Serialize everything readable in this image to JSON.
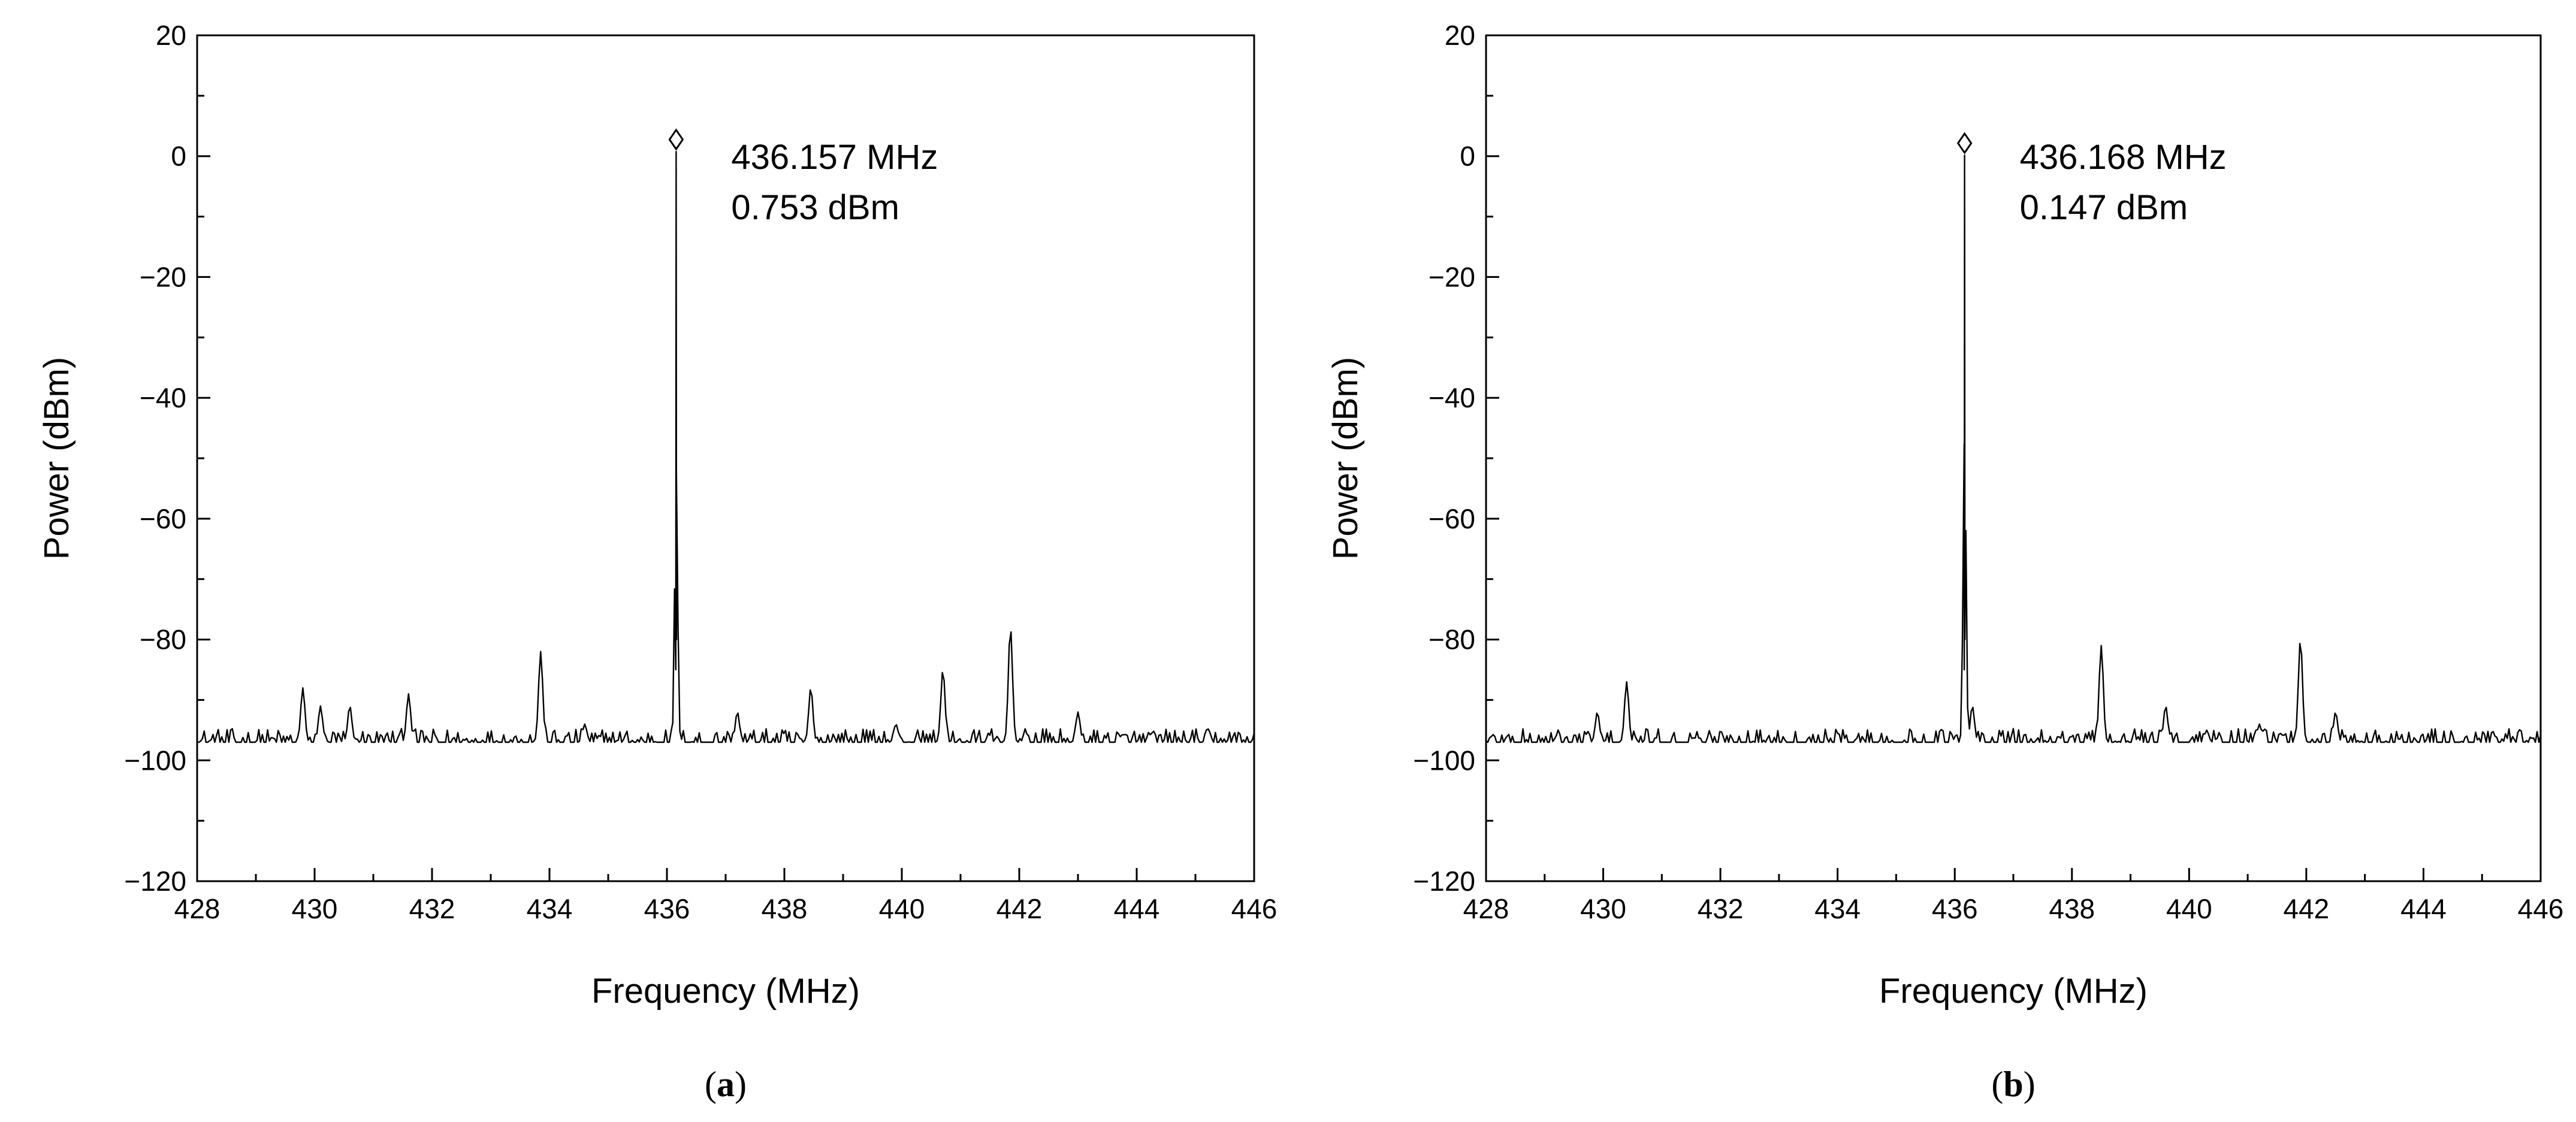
{
  "chart_data": [
    {
      "type": "line",
      "panel_label": "a",
      "xlabel": "Frequency (MHz)",
      "ylabel": "Power (dBm)",
      "xlim": [
        428,
        446
      ],
      "ylim": [
        -120,
        20
      ],
      "xticks": [
        428,
        430,
        432,
        434,
        436,
        438,
        440,
        442,
        444,
        446
      ],
      "yticks": [
        20,
        0,
        -20,
        -40,
        -60,
        -80,
        -100,
        -120
      ],
      "grid": false,
      "noise_floor": -97,
      "peak": {
        "x": 436.157,
        "y": 0.753,
        "label_freq": "436.157 MHz",
        "label_power": "0.753 dBm"
      },
      "spurs": [
        {
          "x": 429.8,
          "y": -88
        },
        {
          "x": 430.1,
          "y": -91
        },
        {
          "x": 430.6,
          "y": -91
        },
        {
          "x": 431.6,
          "y": -89
        },
        {
          "x": 433.85,
          "y": -82
        },
        {
          "x": 434.6,
          "y": -94
        },
        {
          "x": 436.157,
          "y": -51
        },
        {
          "x": 437.2,
          "y": -92
        },
        {
          "x": 438.45,
          "y": -88
        },
        {
          "x": 439.9,
          "y": -94
        },
        {
          "x": 440.7,
          "y": -85
        },
        {
          "x": 441.85,
          "y": -78
        },
        {
          "x": 443.0,
          "y": -92
        }
      ]
    },
    {
      "type": "line",
      "panel_label": "b",
      "xlabel": "Frequency (MHz)",
      "ylabel": "Power (dBm)",
      "xlim": [
        428,
        446
      ],
      "ylim": [
        -120,
        20
      ],
      "xticks": [
        428,
        430,
        432,
        434,
        436,
        438,
        440,
        442,
        444,
        446
      ],
      "yticks": [
        20,
        0,
        -20,
        -40,
        -60,
        -80,
        -100,
        -120
      ],
      "grid": false,
      "noise_floor": -97,
      "peak": {
        "x": 436.168,
        "y": 0.147,
        "label_freq": "436.168 MHz",
        "label_power": "0.147 dBm"
      },
      "spurs": [
        {
          "x": 429.9,
          "y": -92
        },
        {
          "x": 430.4,
          "y": -87
        },
        {
          "x": 431.6,
          "y": -96
        },
        {
          "x": 436.168,
          "y": -45
        },
        {
          "x": 436.3,
          "y": -91
        },
        {
          "x": 438.5,
          "y": -81
        },
        {
          "x": 439.6,
          "y": -91
        },
        {
          "x": 440.3,
          "y": -95
        },
        {
          "x": 441.2,
          "y": -94
        },
        {
          "x": 441.9,
          "y": -80
        },
        {
          "x": 442.5,
          "y": -92
        }
      ]
    }
  ]
}
